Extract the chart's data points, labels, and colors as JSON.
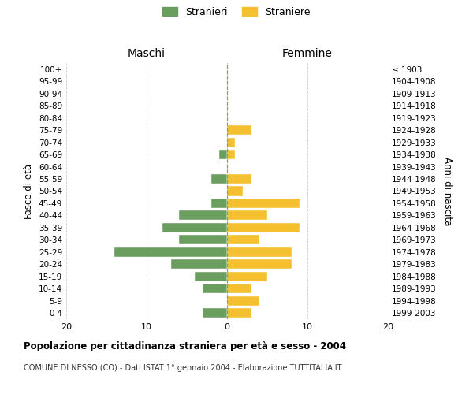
{
  "age_groups": [
    "0-4",
    "5-9",
    "10-14",
    "15-19",
    "20-24",
    "25-29",
    "30-34",
    "35-39",
    "40-44",
    "45-49",
    "50-54",
    "55-59",
    "60-64",
    "65-69",
    "70-74",
    "75-79",
    "80-84",
    "85-89",
    "90-94",
    "95-99",
    "100+"
  ],
  "birth_years": [
    "1999-2003",
    "1994-1998",
    "1989-1993",
    "1984-1988",
    "1979-1983",
    "1974-1978",
    "1969-1973",
    "1964-1968",
    "1959-1963",
    "1954-1958",
    "1949-1953",
    "1944-1948",
    "1939-1943",
    "1934-1938",
    "1929-1933",
    "1924-1928",
    "1919-1923",
    "1914-1918",
    "1909-1913",
    "1904-1908",
    "≤ 1903"
  ],
  "maschi": [
    3,
    0,
    3,
    4,
    7,
    14,
    6,
    8,
    6,
    2,
    0,
    2,
    0,
    1,
    0,
    0,
    0,
    0,
    0,
    0,
    0
  ],
  "femmine": [
    3,
    4,
    3,
    5,
    8,
    8,
    4,
    9,
    5,
    9,
    2,
    3,
    0,
    1,
    1,
    3,
    0,
    0,
    0,
    0,
    0
  ],
  "maschi_color": "#6a9e5e",
  "femmine_color": "#f5c030",
  "grid_color": "#cccccc",
  "center_line_color": "#999966",
  "title": "Popolazione per cittadinanza straniera per età e sesso - 2004",
  "subtitle": "COMUNE DI NESSO (CO) - Dati ISTAT 1° gennaio 2004 - Elaborazione TUTTITALIA.IT",
  "label_maschi": "Maschi",
  "label_femmine": "Femmine",
  "ylabel_left": "Fasce di età",
  "ylabel_right": "Anni di nascita",
  "legend_maschi": "Stranieri",
  "legend_femmine": "Straniere",
  "xlim": 20
}
